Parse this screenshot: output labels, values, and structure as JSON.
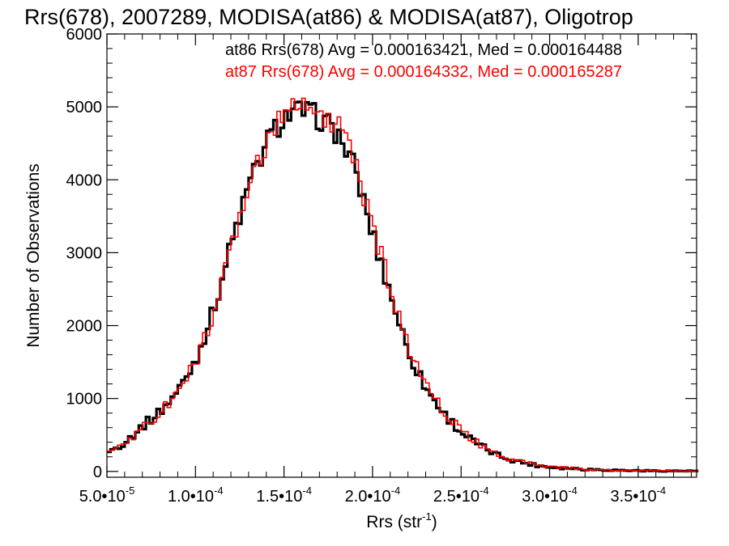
{
  "chart_data": {
    "type": "step-histogram",
    "title": "Rrs(678), 2007289, MODISA(at86) & MODISA(at87), Oligotrop",
    "xlabel": "Rrs (str",
    "xlabel_sup": "-1",
    "xlabel_close": ")",
    "ylabel": "Number of Observations",
    "xlim": [
      5e-05,
      0.000383
    ],
    "ylim": [
      -80,
      6000
    ],
    "x_ticks": [
      {
        "mant": "5.0",
        "exp": "-5",
        "value": 5e-05
      },
      {
        "mant": "1.0",
        "exp": "-4",
        "value": 0.0001
      },
      {
        "mant": "1.5",
        "exp": "-4",
        "value": 0.00015
      },
      {
        "mant": "2.0",
        "exp": "-4",
        "value": 0.0002
      },
      {
        "mant": "2.5",
        "exp": "-4",
        "value": 0.00025
      },
      {
        "mant": "3.0",
        "exp": "-4",
        "value": 0.0003
      },
      {
        "mant": "3.5",
        "exp": "-4",
        "value": 0.00035
      }
    ],
    "y_ticks": [
      0,
      1000,
      2000,
      3000,
      4000,
      5000,
      6000
    ],
    "bin_width": 2e-06,
    "series": [
      {
        "legend": "at86 Rrs(678) Avg = 0.000163421, Med = 0.000164488",
        "color": "#000000",
        "x": [
          5e-05,
          6e-05,
          7e-05,
          8e-05,
          9e-05,
          0.0001,
          0.00011,
          0.00012,
          0.00013,
          0.00014,
          0.00015,
          0.00016,
          0.00017,
          0.00018,
          0.00019,
          0.0002,
          0.00021,
          0.00022,
          0.00023,
          0.00024,
          0.00025,
          0.00026,
          0.00027,
          0.00028,
          0.00029,
          0.0003,
          0.00032,
          0.00034,
          0.00036,
          0.00038
        ],
        "y": [
          250,
          400,
          620,
          820,
          1100,
          1520,
          2200,
          3100,
          3900,
          4500,
          4870,
          4950,
          4850,
          4650,
          4150,
          3250,
          2450,
          1650,
          1150,
          800,
          540,
          360,
          230,
          150,
          95,
          60,
          30,
          15,
          8,
          5
        ]
      },
      {
        "legend": "at87 Rrs(678) Avg = 0.000164332, Med = 0.000165287",
        "color": "#ff0000",
        "x": [
          5e-05,
          6e-05,
          7e-05,
          8e-05,
          9e-05,
          0.0001,
          0.00011,
          0.00012,
          0.00013,
          0.00014,
          0.00015,
          0.00016,
          0.00017,
          0.00018,
          0.00019,
          0.0002,
          0.00021,
          0.00022,
          0.00023,
          0.00024,
          0.00025,
          0.00026,
          0.00027,
          0.00028,
          0.00029,
          0.0003,
          0.00032,
          0.00034,
          0.00036,
          0.00038
        ],
        "y": [
          240,
          380,
          600,
          800,
          1080,
          1500,
          2180,
          3080,
          3880,
          4520,
          4900,
          5050,
          4950,
          4750,
          4250,
          3350,
          2550,
          1720,
          1200,
          830,
          560,
          380,
          245,
          160,
          100,
          65,
          32,
          16,
          9,
          5
        ]
      }
    ]
  }
}
